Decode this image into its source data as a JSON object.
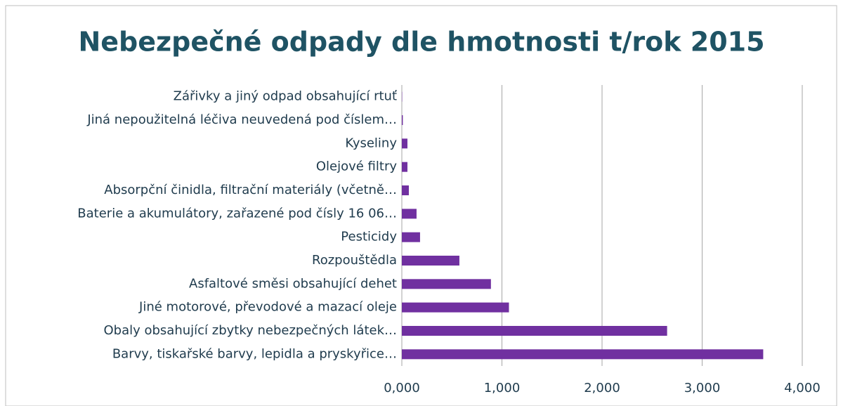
{
  "chart_data": {
    "type": "bar",
    "orientation": "horizontal",
    "title": "Nebezpečné odpady dle hmotnosti t/rok 2015",
    "categories": [
      "Zářivky a jiný odpad obsahující rtuť",
      "Jiná nepoužitelná léčiva neuvedená pod číslem…",
      "Kyseliny",
      "Olejové filtry",
      "Absorpční činidla, filtrační materiály (včetně…",
      "Baterie a akumulátory, zařazené pod čísly 16 06…",
      "Pesticidy",
      "Rozpouštědla",
      "Asfaltové směsi obsahující dehet",
      "Jiné motorové, převodové a mazací oleje",
      "Obaly obsahující zbytky nebezpečných látek…",
      "Barvy, tiskařské barvy, lepidla a pryskyřice…"
    ],
    "values": [
      3,
      10,
      56,
      56,
      70,
      147,
      182,
      575,
      890,
      1070,
      2650,
      3610
    ],
    "color": "#7030a0",
    "xlim": [
      0,
      4000
    ],
    "xticks": [
      {
        "value": 0,
        "label": "0,000"
      },
      {
        "value": 1000,
        "label": "1,000"
      },
      {
        "value": 2000,
        "label": "2,000"
      },
      {
        "value": 3000,
        "label": "3,000"
      },
      {
        "value": 4000,
        "label": "4,000"
      }
    ],
    "grid": true
  }
}
